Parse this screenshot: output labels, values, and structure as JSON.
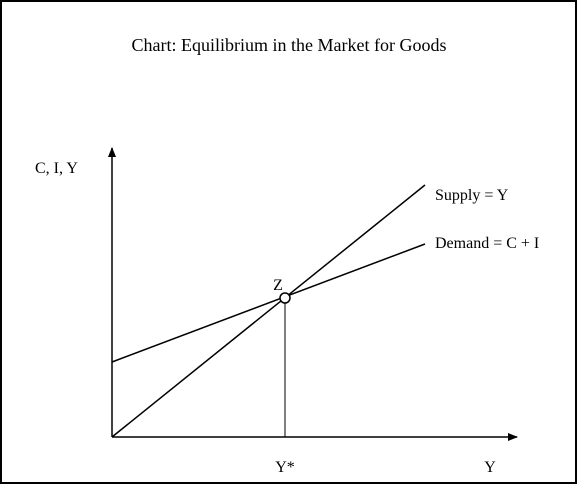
{
  "title": "Chart: Equilibrium in the Market for Goods",
  "y_axis_label": "C, I, Y",
  "x_axis_label": "Y",
  "supply_label": "Supply = Y",
  "demand_label": "Demand = C + I",
  "equilibrium_label": "Z",
  "equilibrium_output_label": "Y*"
}
